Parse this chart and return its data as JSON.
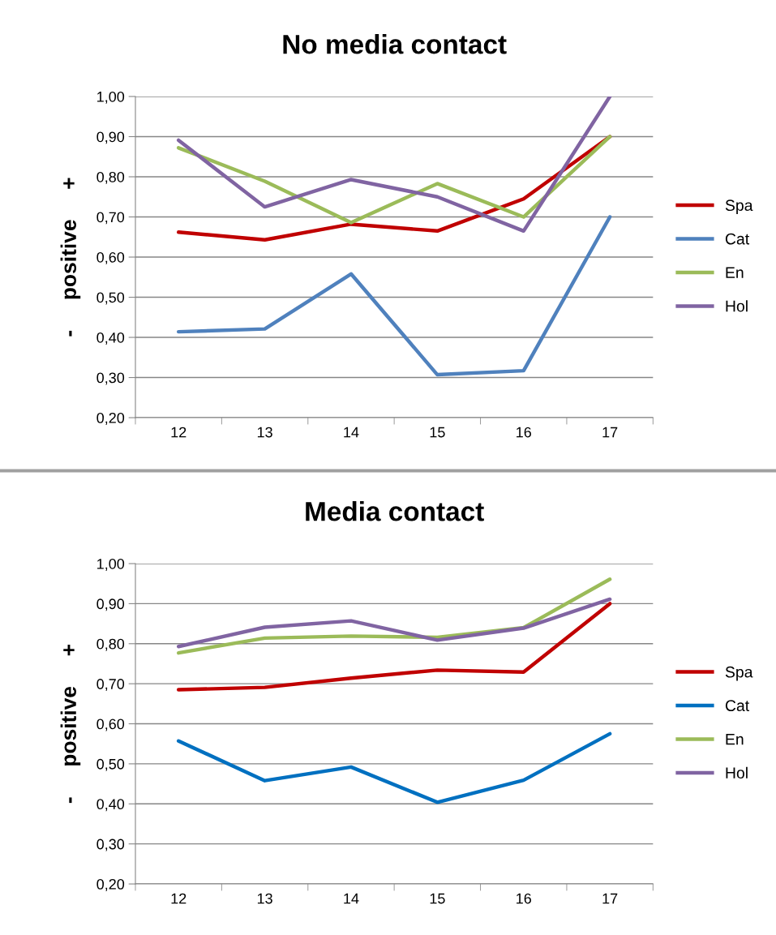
{
  "chart_data": [
    {
      "type": "line",
      "title": "No media contact",
      "ylabel": "-     positive     +",
      "categories": [
        "12",
        "13",
        "14",
        "15",
        "16",
        "17"
      ],
      "ylim": [
        0.2,
        1.0
      ],
      "yticks": [
        {
          "value": 0.2,
          "label": "0,20"
        },
        {
          "value": 0.3,
          "label": "0,30"
        },
        {
          "value": 0.4,
          "label": "0,40"
        },
        {
          "value": 0.5,
          "label": "0,50"
        },
        {
          "value": 0.6,
          "label": "0,60"
        },
        {
          "value": 0.7,
          "label": "0,70"
        },
        {
          "value": 0.8,
          "label": "0,80"
        },
        {
          "value": 0.9,
          "label": "0,90"
        },
        {
          "value": 1.0,
          "label": "1,00"
        }
      ],
      "grid": "y",
      "legend": "right",
      "marker": "none",
      "series": [
        {
          "name": "Spa",
          "color": "#c00000",
          "values": [
            0.662,
            0.643,
            0.682,
            0.665,
            0.745,
            0.9
          ]
        },
        {
          "name": "Cat",
          "color": "#4f81bd",
          "values": [
            0.414,
            0.421,
            0.558,
            0.307,
            0.317,
            0.7
          ]
        },
        {
          "name": "En",
          "color": "#9bbb59",
          "values": [
            0.872,
            0.789,
            0.686,
            0.783,
            0.7,
            0.9
          ]
        },
        {
          "name": "Hol",
          "color": "#8064a2",
          "values": [
            0.891,
            0.725,
            0.793,
            0.75,
            0.665,
            1.0
          ]
        }
      ]
    },
    {
      "type": "line",
      "title": "Media contact",
      "ylabel": "-     positive     +",
      "categories": [
        "12",
        "13",
        "14",
        "15",
        "16",
        "17"
      ],
      "ylim": [
        0.2,
        1.0
      ],
      "yticks": [
        {
          "value": 0.2,
          "label": "0,20"
        },
        {
          "value": 0.3,
          "label": "0,30"
        },
        {
          "value": 0.4,
          "label": "0,40"
        },
        {
          "value": 0.5,
          "label": "0,50"
        },
        {
          "value": 0.6,
          "label": "0,60"
        },
        {
          "value": 0.7,
          "label": "0,70"
        },
        {
          "value": 0.8,
          "label": "0,80"
        },
        {
          "value": 0.9,
          "label": "0,90"
        },
        {
          "value": 1.0,
          "label": "1,00"
        }
      ],
      "grid": "y",
      "legend": "right",
      "marker": "none",
      "series": [
        {
          "name": "Spa",
          "color": "#c00000",
          "values": [
            0.685,
            0.691,
            0.714,
            0.734,
            0.729,
            0.9
          ]
        },
        {
          "name": "Cat",
          "color": "#0070c0",
          "values": [
            0.557,
            0.458,
            0.492,
            0.404,
            0.459,
            0.575
          ]
        },
        {
          "name": "En",
          "color": "#9bbb59",
          "values": [
            0.777,
            0.814,
            0.819,
            0.816,
            0.84,
            0.961
          ]
        },
        {
          "name": "Hol",
          "color": "#8064a2",
          "values": [
            0.793,
            0.841,
            0.857,
            0.809,
            0.839,
            0.911
          ]
        }
      ]
    }
  ]
}
